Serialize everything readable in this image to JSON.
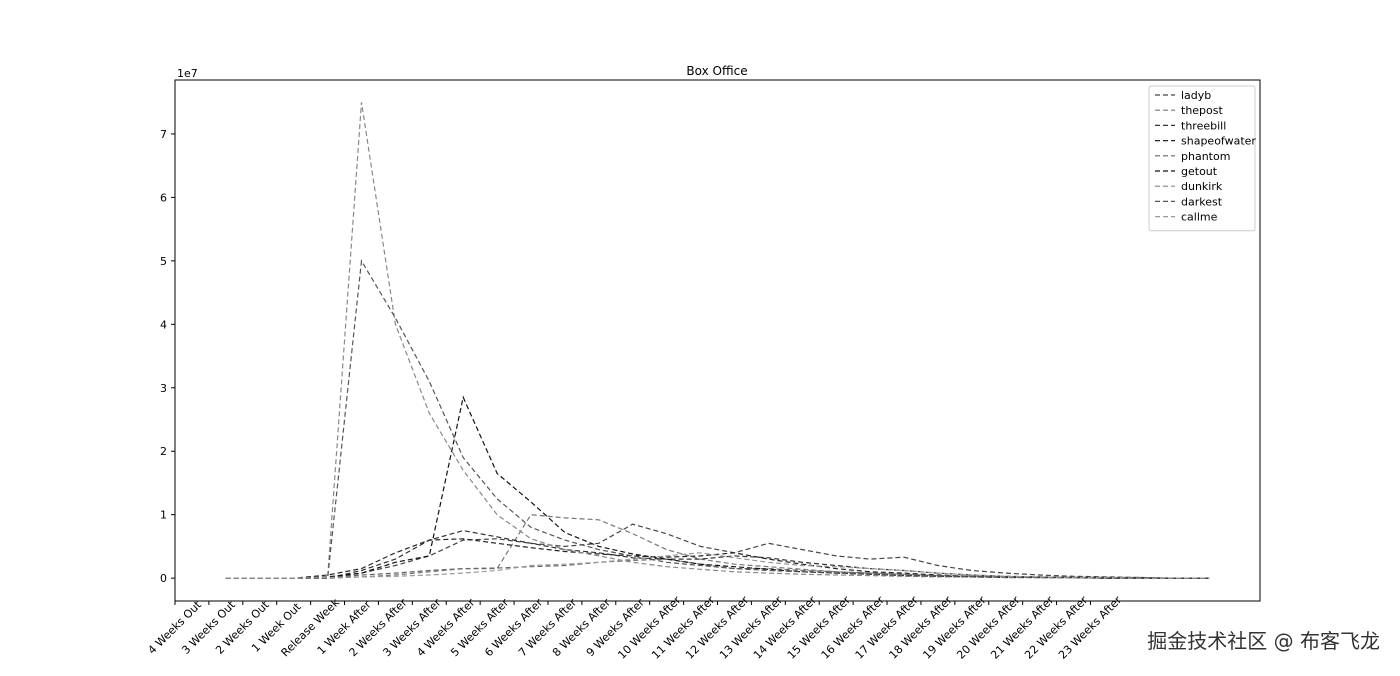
{
  "chart_data": {
    "type": "line",
    "title": "Box Office",
    "y_offset_label": "1e7",
    "watermark": "掘金技术社区 @ 布客飞龙",
    "x": [
      1.5,
      2.5,
      3.5,
      4.5,
      5.5,
      6.5,
      7.5,
      8.5,
      9.5,
      10.5,
      11.5,
      12.5,
      13.5,
      14.5,
      15.5,
      16.5,
      17.5,
      18.5,
      19.5,
      20.5,
      21.5,
      22.5,
      23.5,
      24.5,
      25.5,
      26.5,
      27.5,
      28.5,
      29.5,
      30.5
    ],
    "xlim": [
      0,
      32
    ],
    "xticks": [
      {
        "value": 0,
        "label": "4 Weeks Out"
      },
      {
        "value": 1,
        "label": "3 Weeks Out"
      },
      {
        "value": 2,
        "label": "2 Weeks Out"
      },
      {
        "value": 3,
        "label": "1 Week Out"
      },
      {
        "value": 4,
        "label": "Release Week"
      },
      {
        "value": 5,
        "label": "1 Week After"
      },
      {
        "value": 6,
        "label": "2 Weeks After"
      },
      {
        "value": 7,
        "label": "3 Weeks After"
      },
      {
        "value": 8,
        "label": "4 Weeks After"
      },
      {
        "value": 9,
        "label": "5 Weeks After"
      },
      {
        "value": 10,
        "label": "6 Weeks After"
      },
      {
        "value": 11,
        "label": "7 Weeks After"
      },
      {
        "value": 12,
        "label": "8 Weeks After"
      },
      {
        "value": 13,
        "label": "9 Weeks After"
      },
      {
        "value": 14,
        "label": "10 Weeks After"
      },
      {
        "value": 15,
        "label": "11 Weeks After"
      },
      {
        "value": 16,
        "label": "12 Weeks After"
      },
      {
        "value": 17,
        "label": "13 Weeks After"
      },
      {
        "value": 18,
        "label": "14 Weeks After"
      },
      {
        "value": 19,
        "label": "15 Weeks After"
      },
      {
        "value": 20,
        "label": "16 Weeks After"
      },
      {
        "value": 21,
        "label": "17 Weeks After"
      },
      {
        "value": 22,
        "label": "18 Weeks After"
      },
      {
        "value": 23,
        "label": "19 Weeks After"
      },
      {
        "value": 24,
        "label": "20 Weeks After"
      },
      {
        "value": 25,
        "label": "21 Weeks After"
      },
      {
        "value": 26,
        "label": "22 Weeks After"
      },
      {
        "value": 27,
        "label": "23 Weeks After"
      }
    ],
    "ylim": [
      -0.36,
      7.85
    ],
    "yticks": [
      0,
      1,
      2,
      3,
      4,
      5,
      6,
      7
    ],
    "legend": "upper right",
    "series": [
      {
        "name": "ladyb",
        "color": "#444444",
        "values": [
          0,
          0,
          0,
          0,
          0.08,
          0.2,
          0.35,
          0.6,
          0.62,
          0.55,
          0.5,
          0.55,
          0.85,
          0.7,
          0.5,
          0.4,
          0.55,
          0.45,
          0.35,
          0.3,
          0.33,
          0.2,
          0.12,
          0.08,
          0.05,
          0.03,
          0.02,
          0.01,
          0,
          0
        ]
      },
      {
        "name": "thepost",
        "color": "#777777",
        "values": [
          0,
          0,
          0,
          0,
          0.02,
          0.05,
          0.1,
          0.15,
          0.15,
          1.0,
          0.95,
          0.92,
          0.7,
          0.45,
          0.3,
          0.22,
          0.18,
          0.14,
          0.1,
          0.08,
          0.06,
          0.04,
          0.03,
          0.02,
          0.01,
          0.01,
          0,
          0,
          0,
          0
        ]
      },
      {
        "name": "threebill",
        "color": "#333333",
        "values": [
          0,
          0,
          0,
          0,
          0.12,
          0.3,
          0.6,
          0.75,
          0.65,
          0.55,
          0.45,
          0.4,
          0.32,
          0.3,
          0.3,
          0.35,
          0.32,
          0.25,
          0.2,
          0.15,
          0.12,
          0.08,
          0.05,
          0.03,
          0.02,
          0.01,
          0.01,
          0,
          0,
          0
        ]
      },
      {
        "name": "shapeofwater",
        "color": "#222222",
        "values": [
          0,
          0,
          0,
          0.05,
          0.15,
          0.4,
          0.6,
          0.62,
          0.55,
          0.48,
          0.42,
          0.38,
          0.35,
          0.33,
          0.35,
          0.4,
          0.3,
          0.22,
          0.15,
          0.1,
          0.08,
          0.05,
          0.03,
          0.02,
          0.01,
          0.01,
          0,
          0,
          0,
          0
        ]
      },
      {
        "name": "phantom",
        "color": "#666666",
        "values": [
          0,
          0,
          0,
          0,
          0.05,
          0.08,
          0.12,
          0.15,
          0.16,
          0.18,
          0.2,
          0.25,
          0.28,
          0.3,
          0.22,
          0.15,
          0.15,
          0.12,
          0.1,
          0.08,
          0.06,
          0.04,
          0.03,
          0.02,
          0.01,
          0.01,
          0.01,
          0,
          0,
          0
        ]
      },
      {
        "name": "getout",
        "color": "#111111",
        "values": [
          0,
          0,
          0,
          0.02,
          0.08,
          0.25,
          0.35,
          2.85,
          1.65,
          1.2,
          0.72,
          0.5,
          0.38,
          0.3,
          0.22,
          0.18,
          0.14,
          0.1,
          0.08,
          0.06,
          0.04,
          0.03,
          0.02,
          0.01,
          0.01,
          0.01,
          0,
          0,
          0,
          0
        ]
      },
      {
        "name": "dunkirk",
        "color": "#888888",
        "values": [
          0,
          0,
          0,
          0,
          7.5,
          4.0,
          2.6,
          1.7,
          1.0,
          0.62,
          0.45,
          0.35,
          0.25,
          0.18,
          0.14,
          0.1,
          0.08,
          0.06,
          0.05,
          0.04,
          0.03,
          0.02,
          0.02,
          0.01,
          0.01,
          0.01,
          0.01,
          0,
          0,
          0
        ]
      },
      {
        "name": "darkest",
        "color": "#555555",
        "values": [
          0,
          0,
          0,
          0,
          5.0,
          4.1,
          3.1,
          1.9,
          1.25,
          0.8,
          0.6,
          0.45,
          0.35,
          0.25,
          0.2,
          0.15,
          0.12,
          0.1,
          0.08,
          0.06,
          0.04,
          0.03,
          0.02,
          0.02,
          0.01,
          0.01,
          0.01,
          0.01,
          0,
          0
        ]
      },
      {
        "name": "callme",
        "color": "#999999",
        "values": [
          0,
          0,
          0,
          0.01,
          0.02,
          0.03,
          0.05,
          0.08,
          0.12,
          0.2,
          0.22,
          0.25,
          0.3,
          0.35,
          0.4,
          0.32,
          0.25,
          0.2,
          0.18,
          0.15,
          0.12,
          0.08,
          0.05,
          0.03,
          0.02,
          0.01,
          0.01,
          0,
          0,
          0
        ]
      }
    ]
  }
}
